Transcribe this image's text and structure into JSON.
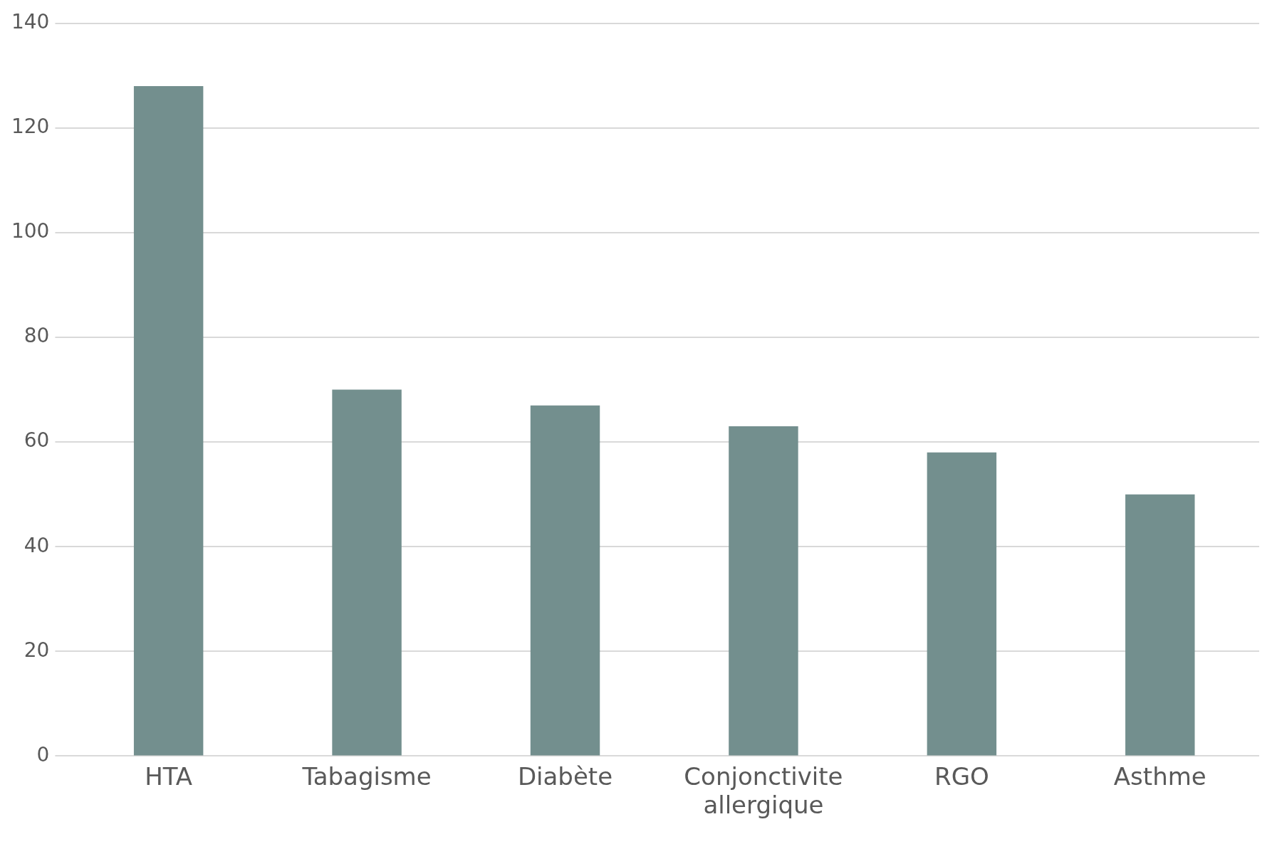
{
  "chart_data": {
    "type": "bar",
    "categories": [
      "HTA",
      "Tabagisme",
      "Diabète",
      "Conjonctivite allergique",
      "RGO",
      "Asthme"
    ],
    "values": [
      128,
      70,
      67,
      63,
      58,
      50
    ],
    "color": "#738f8e",
    "ylim": [
      0,
      140
    ],
    "yticks": [
      0,
      20,
      40,
      60,
      80,
      100,
      120,
      140
    ],
    "grid": "y"
  }
}
